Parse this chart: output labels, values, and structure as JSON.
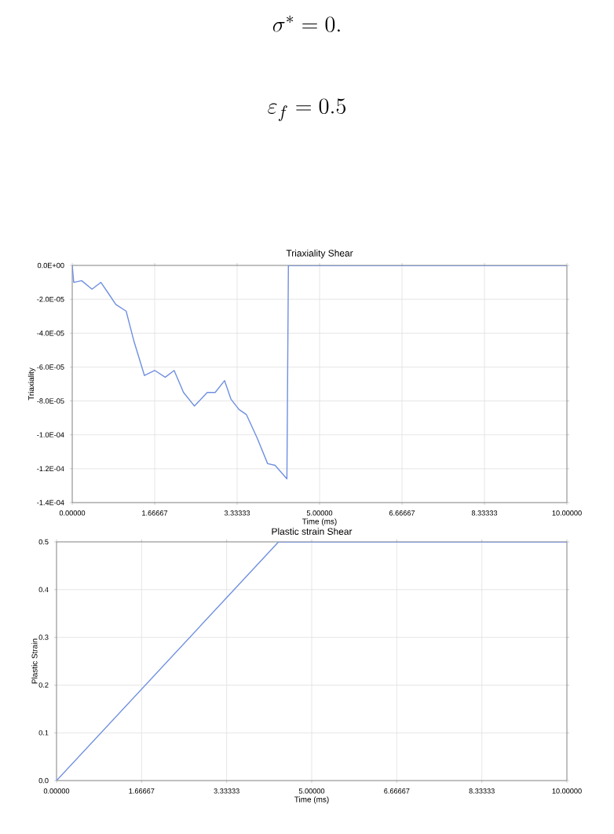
{
  "chart_data": [
    {
      "type": "line",
      "title": "Triaxiality Shear",
      "xlabel": "Time (ms)",
      "ylabel": "Triaxiality",
      "annotations": [
        "\\sigma^* = 0.",
        "\\varepsilon_f =0.5"
      ],
      "x": [
        0,
        0.03,
        0.19,
        0.4,
        0.58,
        0.72,
        0.88,
        1.09,
        1.25,
        1.46,
        1.67,
        1.88,
        2.06,
        2.25,
        2.47,
        2.73,
        2.89,
        3.08,
        3.21,
        3.37,
        3.52,
        3.74,
        3.95,
        4.1,
        4.34,
        4.37,
        10
      ],
      "series": [
        {
          "color": "#6f8fe0",
          "values": [
            0,
            -1e-05,
            -9e-06,
            -1.4e-05,
            -1e-05,
            -1.6e-05,
            -2.3e-05,
            -2.7e-05,
            -4.5e-05,
            -6.5e-05,
            -6.2e-05,
            -6.6e-05,
            -6.2e-05,
            -7.5e-05,
            -8.3e-05,
            -7.5e-05,
            -7.5e-05,
            -6.8e-05,
            -7.9e-05,
            -8.5e-05,
            -8.8e-05,
            -0.000102,
            -0.000117,
            -0.000118,
            -0.000126,
            0,
            0
          ]
        }
      ],
      "xlim": [
        0,
        10
      ],
      "ylim": [
        -0.00014,
        0
      ],
      "xticks": [
        {
          "value": 0,
          "label": "0.00000"
        },
        {
          "value": 1.66667,
          "label": "1.66667"
        },
        {
          "value": 3.33333,
          "label": "3.33333"
        },
        {
          "value": 5,
          "label": "5.00000"
        },
        {
          "value": 6.66667,
          "label": "6.66667"
        },
        {
          "value": 8.33333,
          "label": "8.33333"
        },
        {
          "value": 10,
          "label": "10.00000"
        }
      ],
      "yticks": [
        {
          "value": 0,
          "label": "0.0E+00"
        },
        {
          "value": -2e-05,
          "label": "-2.0E-05"
        },
        {
          "value": -4e-05,
          "label": "-4.0E-05"
        },
        {
          "value": -6e-05,
          "label": "-6.0E-05"
        },
        {
          "value": -8e-05,
          "label": "-8.0E-05"
        },
        {
          "value": -0.0001,
          "label": "-1.0E-04"
        },
        {
          "value": -0.00012,
          "label": "-1.2E-04"
        },
        {
          "value": -0.00014,
          "label": "-1.4E-04"
        }
      ],
      "grid": true
    },
    {
      "type": "line",
      "title": "Plastic strain Shear",
      "xlabel": "Time (ms)",
      "ylabel": "Plastic Strain",
      "x": [
        0,
        4.35,
        10
      ],
      "series": [
        {
          "color": "#6f8fe0",
          "values": [
            0,
            0.5,
            0.5
          ]
        }
      ],
      "xlim": [
        0,
        10
      ],
      "ylim": [
        0,
        0.5
      ],
      "xticks": [
        {
          "value": 0,
          "label": "0.00000"
        },
        {
          "value": 1.66667,
          "label": "1.66667"
        },
        {
          "value": 3.33333,
          "label": "3.33333"
        },
        {
          "value": 5,
          "label": "5.00000"
        },
        {
          "value": 6.66667,
          "label": "6.66667"
        },
        {
          "value": 8.33333,
          "label": "8.33333"
        },
        {
          "value": 10,
          "label": "10.00000"
        }
      ],
      "yticks": [
        {
          "value": 0,
          "label": "0.0"
        },
        {
          "value": 0.1,
          "label": "0.1"
        },
        {
          "value": 0.2,
          "label": "0.2"
        },
        {
          "value": 0.3,
          "label": "0.3"
        },
        {
          "value": 0.4,
          "label": "0.4"
        },
        {
          "value": 0.5,
          "label": "0.5"
        }
      ],
      "grid": true
    }
  ]
}
